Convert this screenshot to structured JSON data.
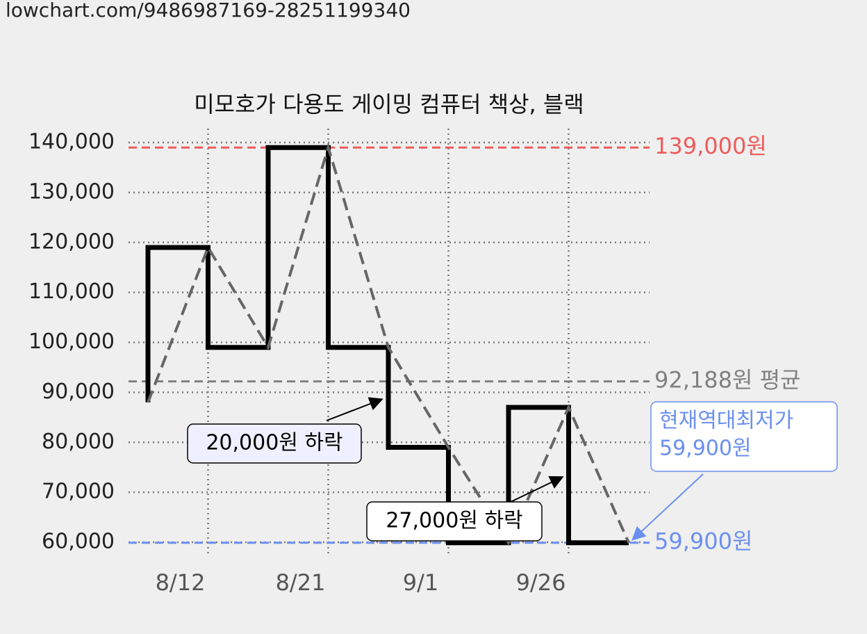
{
  "url": "lowchart.com/9486987169-28251199340",
  "chart_data": {
    "type": "step",
    "title": "미모호가 다용도 게이밍 컴퓨터 책상, 블랙",
    "categories": [
      null,
      "8/12",
      null,
      "8/21",
      null,
      "9/1",
      null,
      "9/26",
      null
    ],
    "series": [
      {
        "style": "step",
        "color": "#000000",
        "values": [
          88000,
          119000,
          99000,
          139000,
          99000,
          79000,
          59900,
          87000,
          59900
        ]
      },
      {
        "style": "dashed",
        "color": "#666666",
        "values": [
          88000,
          119000,
          99000,
          139000,
          99000,
          79000,
          59900,
          87000,
          59900
        ]
      }
    ],
    "ylim": [
      60000,
      140000
    ],
    "yticks": [
      {
        "value": 60000,
        "label": "60,000"
      },
      {
        "value": 70000,
        "label": "70,000"
      },
      {
        "value": 80000,
        "label": "80,000"
      },
      {
        "value": 90000,
        "label": "90,000"
      },
      {
        "value": 100000,
        "label": "100,000"
      },
      {
        "value": 110000,
        "label": "110,000"
      },
      {
        "value": 120000,
        "label": "120,000"
      },
      {
        "value": 130000,
        "label": "130,000"
      },
      {
        "value": 140000,
        "label": "140,000"
      }
    ],
    "grid": true,
    "reference_lines": [
      {
        "value": 139000,
        "label": "139,000원",
        "color": "#f05a5a"
      },
      {
        "value": 92188,
        "label": "92,188원 평균",
        "color": "#808080"
      },
      {
        "value": 59900,
        "label": "59,900원",
        "color": "#6b8ff0"
      }
    ],
    "annotations": [
      {
        "lines": [
          "20,000원 하락"
        ]
      },
      {
        "lines": [
          "27,000원 하락"
        ]
      },
      {
        "lines": [
          "현재역대최저가",
          "59,900원"
        ],
        "color": "#6b8ff0"
      }
    ]
  }
}
